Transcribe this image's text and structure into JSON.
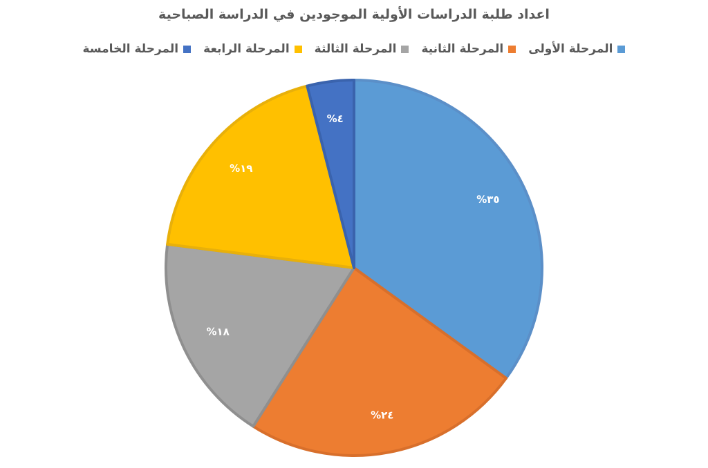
{
  "chart_data": {
    "type": "pie",
    "title": "اعداد طلبة الدراسات الأولية الموجودين في الدراسة الصباحية",
    "legend_position": "top",
    "slices": [
      {
        "label": "المرحلة الأولى",
        "value": 35,
        "display": "%٣٥",
        "color": "#5B9BD5",
        "border": "#5B8FC8"
      },
      {
        "label": "المرحلة الثانية",
        "value": 24,
        "display": "%٢٤",
        "color": "#ED7D31",
        "border": "#D86F2B"
      },
      {
        "label": "المرحلة الثالثة",
        "value": 18,
        "display": "%١٨",
        "color": "#A5A5A5",
        "border": "#8F8F8F"
      },
      {
        "label": "المرحلة الرابعة",
        "value": 19,
        "display": "%١٩",
        "color": "#FFC000",
        "border": "#E8B00A"
      },
      {
        "label": "المرحلة الخامسة",
        "value": 4,
        "display": "%٤",
        "color": "#4472C4",
        "border": "#3A63AD"
      }
    ]
  }
}
